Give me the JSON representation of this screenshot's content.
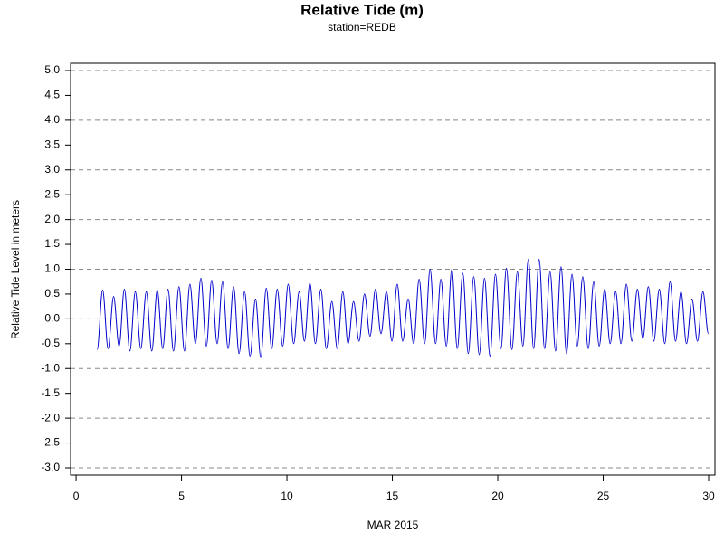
{
  "chart_data": {
    "type": "line",
    "title": "Relative Tide (m)",
    "subtitle": "station=REDB",
    "x_label": "MAR 2015",
    "y_label": "Relative Tide Level in meters",
    "xlim": [
      -0.26,
      30.3
    ],
    "ylim": [
      -3.146,
      5.146
    ],
    "xticks": [
      0,
      5,
      10,
      15,
      20,
      25,
      30
    ],
    "yticks": [
      {
        "value": 5,
        "label": "5.0"
      },
      {
        "value": 4.5,
        "label": "4.5"
      },
      {
        "value": 4,
        "label": "4.0"
      },
      {
        "value": 3.5,
        "label": "3.5"
      },
      {
        "value": 3,
        "label": "3.0"
      },
      {
        "value": 2.5,
        "label": "2.5"
      },
      {
        "value": 2,
        "label": "2.0"
      },
      {
        "value": 1.5,
        "label": "1.5"
      },
      {
        "value": 1,
        "label": "1.0"
      },
      {
        "value": 0.5,
        "label": "0.5"
      },
      {
        "value": 0,
        "label": "0.0"
      },
      {
        "value": -0.5,
        "label": "-0.5"
      },
      {
        "value": -1,
        "label": "-1.0"
      },
      {
        "value": -1.5,
        "label": "-1.5"
      },
      {
        "value": -2,
        "label": "-2.0"
      },
      {
        "value": -2.5,
        "label": "-2.5"
      },
      {
        "value": -3,
        "label": "-3.0"
      }
    ],
    "grid_ticks": [
      5,
      4,
      3,
      2,
      1,
      0,
      -1,
      -2,
      -3
    ],
    "grid": true,
    "color": "#0000cc",
    "x": [
      1.0,
      1.26,
      1.52,
      1.78,
      2.04,
      2.29,
      2.55,
      2.81,
      3.07,
      3.33,
      3.59,
      3.85,
      4.11,
      4.36,
      4.62,
      4.88,
      5.14,
      5.4,
      5.66,
      5.92,
      6.18,
      6.43,
      6.69,
      6.95,
      7.21,
      7.47,
      7.73,
      7.99,
      8.25,
      8.51,
      8.76,
      9.02,
      9.28,
      9.54,
      9.8,
      10.06,
      10.32,
      10.58,
      10.83,
      11.09,
      11.35,
      11.61,
      11.87,
      12.13,
      12.39,
      12.65,
      12.9,
      13.16,
      13.42,
      13.68,
      13.94,
      14.2,
      14.46,
      14.72,
      14.98,
      15.23,
      15.49,
      15.75,
      16.01,
      16.27,
      16.53,
      16.79,
      17.05,
      17.3,
      17.56,
      17.82,
      18.08,
      18.34,
      18.6,
      18.86,
      19.12,
      19.37,
      19.63,
      19.89,
      20.15,
      20.41,
      20.67,
      20.93,
      21.19,
      21.45,
      21.7,
      21.96,
      22.22,
      22.48,
      22.74,
      23.0,
      23.26,
      23.52,
      23.77,
      24.03,
      24.29,
      24.55,
      24.81,
      25.07,
      25.33,
      25.59,
      25.84,
      26.1,
      26.36,
      26.62,
      26.88,
      27.14,
      27.4,
      27.66,
      27.92,
      28.17,
      28.43,
      28.69,
      28.95,
      29.21,
      29.47,
      29.73,
      29.99
    ],
    "values": [
      -0.62,
      0.58,
      -0.6,
      0.45,
      -0.55,
      0.6,
      -0.65,
      0.55,
      -0.6,
      0.55,
      -0.65,
      0.58,
      -0.6,
      0.6,
      -0.65,
      0.65,
      -0.65,
      0.7,
      -0.5,
      0.82,
      -0.55,
      0.78,
      -0.5,
      0.75,
      -0.6,
      0.65,
      -0.7,
      0.55,
      -0.75,
      0.4,
      -0.78,
      0.62,
      -0.6,
      0.6,
      -0.55,
      0.7,
      -0.5,
      0.55,
      -0.45,
      0.72,
      -0.5,
      0.6,
      -0.6,
      0.35,
      -0.6,
      0.55,
      -0.5,
      0.35,
      -0.45,
      0.5,
      -0.35,
      0.6,
      -0.3,
      0.55,
      -0.45,
      0.7,
      -0.45,
      0.4,
      -0.5,
      0.8,
      -0.5,
      1.0,
      -0.5,
      0.8,
      -0.55,
      1.0,
      -0.6,
      0.92,
      -0.7,
      0.85,
      -0.72,
      0.82,
      -0.75,
      0.9,
      -0.6,
      1.02,
      -0.62,
      0.95,
      -0.55,
      1.2,
      -0.6,
      1.2,
      -0.6,
      0.95,
      -0.65,
      1.05,
      -0.7,
      0.9,
      -0.55,
      0.85,
      -0.6,
      0.75,
      -0.55,
      0.6,
      -0.5,
      0.55,
      -0.5,
      0.7,
      -0.45,
      0.6,
      -0.4,
      0.65,
      -0.45,
      0.6,
      -0.5,
      0.75,
      -0.45,
      0.55,
      -0.5,
      0.4,
      -0.45,
      0.55,
      -0.3
    ]
  }
}
